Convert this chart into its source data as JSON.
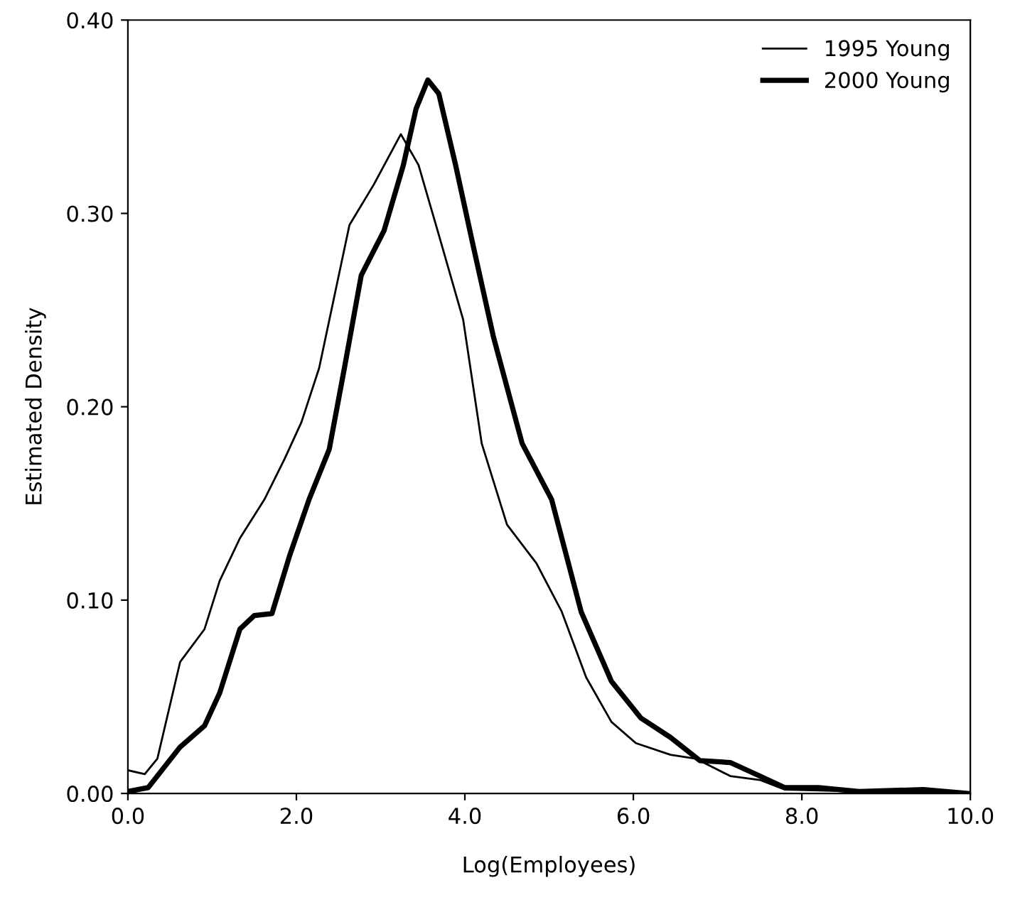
{
  "chart_data": {
    "type": "line",
    "xlabel": "Log(Employees)",
    "ylabel": "Estimated Density",
    "xlim": [
      0,
      10
    ],
    "ylim": [
      0,
      0.4
    ],
    "xticks": [
      {
        "value": 0,
        "label": "0.0"
      },
      {
        "value": 2,
        "label": "2.0"
      },
      {
        "value": 4,
        "label": "4.0"
      },
      {
        "value": 6,
        "label": "6.0"
      },
      {
        "value": 8,
        "label": "8.0"
      },
      {
        "value": 10,
        "label": "10.0"
      }
    ],
    "yticks": [
      {
        "value": 0,
        "label": "0.00"
      },
      {
        "value": 0.1,
        "label": "0.10"
      },
      {
        "value": 0.2,
        "label": "0.20"
      },
      {
        "value": 0.3,
        "label": "0.30"
      },
      {
        "value": 0.4,
        "label": "0.40"
      }
    ],
    "grid": false,
    "legend": "top right",
    "marker": "none",
    "line_style": "solid",
    "series": [
      {
        "name": "1995 Young",
        "color": "#000000",
        "x": [
          0,
          0.2,
          0.35,
          0.62,
          0.91,
          1.09,
          1.33,
          1.62,
          1.86,
          2.06,
          2.27,
          2.45,
          2.63,
          2.92,
          3.24,
          3.45,
          3.69,
          3.98,
          4.2,
          4.5,
          4.85,
          5.15,
          5.44,
          5.74,
          6.03,
          6.44,
          6.74,
          7.15,
          7.5,
          7.8,
          8.68,
          9.97
        ],
        "values": [
          0.012,
          0.01,
          0.018,
          0.068,
          0.085,
          0.11,
          0.132,
          0.152,
          0.173,
          0.192,
          0.22,
          0.257,
          0.294,
          0.315,
          0.341,
          0.325,
          0.289,
          0.245,
          0.181,
          0.139,
          0.119,
          0.094,
          0.06,
          0.037,
          0.026,
          0.02,
          0.018,
          0.009,
          0.007,
          0.002,
          0.001,
          0.0
        ]
      },
      {
        "name": "2000 Young",
        "color": "#000000",
        "x": [
          0,
          0.24,
          0.62,
          0.91,
          1.09,
          1.33,
          1.5,
          1.71,
          1.92,
          2.15,
          2.39,
          2.57,
          2.77,
          3.04,
          3.27,
          3.42,
          3.56,
          3.69,
          3.89,
          4.1,
          4.34,
          4.68,
          5.03,
          5.38,
          5.74,
          6.09,
          6.44,
          6.79,
          7.15,
          7.5,
          7.8,
          8.2,
          8.68,
          9.44,
          9.97
        ],
        "values": [
          0.001,
          0.003,
          0.024,
          0.035,
          0.052,
          0.085,
          0.092,
          0.093,
          0.123,
          0.152,
          0.178,
          0.22,
          0.268,
          0.291,
          0.325,
          0.354,
          0.369,
          0.362,
          0.325,
          0.283,
          0.236,
          0.181,
          0.152,
          0.094,
          0.058,
          0.039,
          0.029,
          0.017,
          0.016,
          0.009,
          0.003,
          0.003,
          0.001,
          0.002,
          0.0
        ]
      }
    ]
  }
}
